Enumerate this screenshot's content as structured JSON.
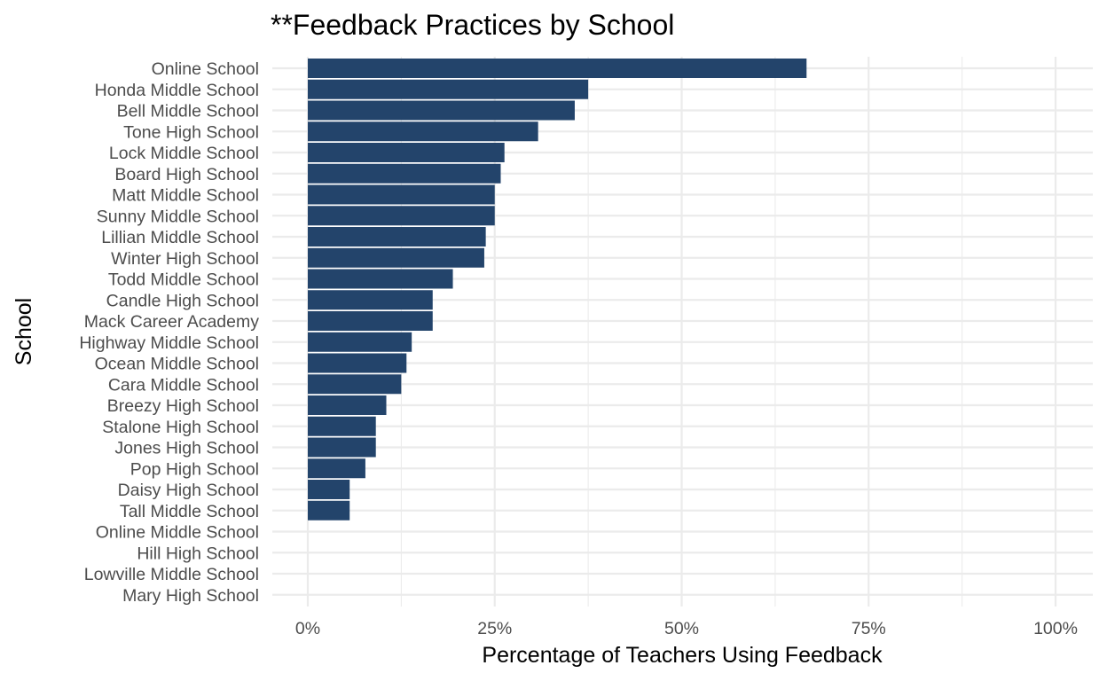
{
  "chart_data": {
    "type": "bar",
    "orientation": "horizontal",
    "title": "**Feedback Practices by School",
    "xlabel": "Percentage of Teachers Using Feedback",
    "ylabel": "School",
    "xlim": [
      0,
      1
    ],
    "x_ticks": [
      0,
      0.25,
      0.5,
      0.75,
      1.0
    ],
    "x_tick_labels": [
      "0%",
      "25%",
      "50%",
      "75%",
      "100%"
    ],
    "grid": true,
    "legend": "none",
    "bar_color": "#23446b",
    "categories": [
      "Online School",
      "Honda Middle School",
      "Bell Middle School",
      "Tone High School",
      "Lock Middle School",
      "Board High School",
      "Matt Middle School",
      "Sunny Middle School",
      "Lillian Middle School",
      "Winter High School",
      "Todd Middle School",
      "Candle High School",
      "Mack Career Academy",
      "Highway Middle School",
      "Ocean Middle School",
      "Cara Middle School",
      "Breezy High School",
      "Stalone High School",
      "Jones High School",
      "Pop High School",
      "Daisy High School",
      "Tall Middle School",
      "Online Middle School",
      "Hill High School",
      "Lowville Middle School",
      "Mary High School"
    ],
    "values": [
      0.667,
      0.375,
      0.357,
      0.308,
      0.263,
      0.258,
      0.25,
      0.25,
      0.238,
      0.236,
      0.194,
      0.167,
      0.167,
      0.139,
      0.132,
      0.125,
      0.105,
      0.091,
      0.091,
      0.077,
      0.056,
      0.056,
      0,
      0,
      0,
      0
    ]
  }
}
